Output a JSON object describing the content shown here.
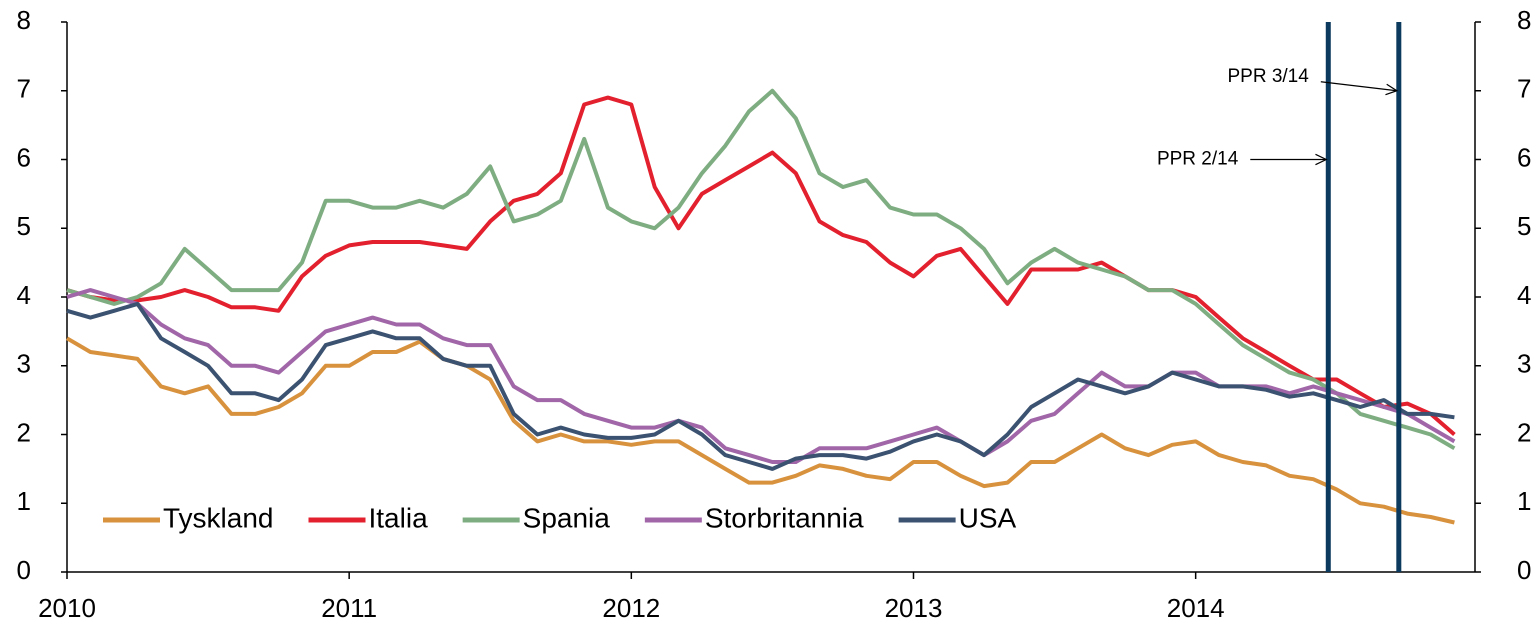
{
  "chart_data": {
    "type": "line",
    "x": [
      2010,
      2010.083,
      2010.167,
      2010.25,
      2010.333,
      2010.417,
      2010.5,
      2010.583,
      2010.667,
      2010.75,
      2010.833,
      2010.917,
      2011,
      2011.083,
      2011.167,
      2011.25,
      2011.333,
      2011.417,
      2011.5,
      2011.583,
      2011.667,
      2011.75,
      2011.833,
      2011.917,
      2012,
      2012.083,
      2012.167,
      2012.25,
      2012.333,
      2012.417,
      2012.5,
      2012.583,
      2012.667,
      2012.75,
      2012.833,
      2012.917,
      2013,
      2013.083,
      2013.167,
      2013.25,
      2013.333,
      2013.417,
      2013.5,
      2013.583,
      2013.667,
      2013.75,
      2013.833,
      2013.917,
      2014,
      2014.083,
      2014.167,
      2014.25,
      2014.333,
      2014.417,
      2014.5,
      2014.583,
      2014.667,
      2014.75,
      2014.833,
      2014.917
    ],
    "series": [
      {
        "name": "Tyskland",
        "color": "#d8923e",
        "values": [
          3.4,
          3.2,
          3.15,
          3.1,
          2.7,
          2.6,
          2.7,
          2.3,
          2.3,
          2.4,
          2.6,
          3.0,
          3.0,
          3.2,
          3.2,
          3.35,
          3.1,
          3.0,
          2.8,
          2.2,
          1.9,
          2.0,
          1.9,
          1.9,
          1.85,
          1.9,
          1.9,
          1.7,
          1.5,
          1.3,
          1.3,
          1.4,
          1.55,
          1.5,
          1.4,
          1.35,
          1.6,
          1.6,
          1.4,
          1.25,
          1.3,
          1.6,
          1.6,
          1.8,
          2.0,
          1.8,
          1.7,
          1.85,
          1.9,
          1.7,
          1.6,
          1.55,
          1.4,
          1.35,
          1.2,
          1.0,
          0.95,
          0.85,
          0.8,
          0.72
        ]
      },
      {
        "name": "Italia",
        "color": "#e3202e",
        "values": [
          4.1,
          4.0,
          3.95,
          3.95,
          4.0,
          4.1,
          4.0,
          3.85,
          3.85,
          3.8,
          4.3,
          4.6,
          4.75,
          4.8,
          4.8,
          4.8,
          4.75,
          4.7,
          5.1,
          5.4,
          5.5,
          5.8,
          6.8,
          6.9,
          6.8,
          5.6,
          5.0,
          5.5,
          5.7,
          5.9,
          6.1,
          5.8,
          5.1,
          4.9,
          4.8,
          4.5,
          4.3,
          4.6,
          4.7,
          4.3,
          3.9,
          4.4,
          4.4,
          4.4,
          4.5,
          4.3,
          4.1,
          4.1,
          4.0,
          3.7,
          3.4,
          3.2,
          3.0,
          2.8,
          2.8,
          2.6,
          2.4,
          2.45,
          2.3,
          2.0
        ]
      },
      {
        "name": "Spania",
        "color": "#7fad82",
        "values": [
          4.1,
          4.0,
          3.9,
          4.0,
          4.2,
          4.7,
          4.4,
          4.1,
          4.1,
          4.1,
          4.5,
          5.4,
          5.4,
          5.3,
          5.3,
          5.4,
          5.3,
          5.5,
          5.9,
          5.1,
          5.2,
          5.4,
          6.3,
          5.3,
          5.1,
          5.0,
          5.3,
          5.8,
          6.2,
          6.7,
          7.0,
          6.6,
          5.8,
          5.6,
          5.7,
          5.3,
          5.2,
          5.2,
          5.0,
          4.7,
          4.2,
          4.5,
          4.7,
          4.5,
          4.4,
          4.3,
          4.1,
          4.1,
          3.9,
          3.6,
          3.3,
          3.1,
          2.9,
          2.8,
          2.6,
          2.3,
          2.2,
          2.1,
          2.0,
          1.8
        ]
      },
      {
        "name": "Storbritannia",
        "color": "#a066a8",
        "values": [
          4.0,
          4.1,
          4.0,
          3.9,
          3.6,
          3.4,
          3.3,
          3.0,
          3.0,
          2.9,
          3.2,
          3.5,
          3.6,
          3.7,
          3.6,
          3.6,
          3.4,
          3.3,
          3.3,
          2.7,
          2.5,
          2.5,
          2.3,
          2.2,
          2.1,
          2.1,
          2.2,
          2.1,
          1.8,
          1.7,
          1.6,
          1.6,
          1.8,
          1.8,
          1.8,
          1.9,
          2.0,
          2.1,
          1.9,
          1.7,
          1.9,
          2.2,
          2.3,
          2.6,
          2.9,
          2.7,
          2.7,
          2.9,
          2.9,
          2.7,
          2.7,
          2.7,
          2.6,
          2.7,
          2.6,
          2.5,
          2.4,
          2.3,
          2.1,
          1.9
        ]
      },
      {
        "name": "USA",
        "color": "#3b5271",
        "values": [
          3.8,
          3.7,
          3.8,
          3.9,
          3.4,
          3.2,
          3.0,
          2.6,
          2.6,
          2.5,
          2.8,
          3.3,
          3.4,
          3.5,
          3.4,
          3.4,
          3.1,
          3.0,
          3.0,
          2.3,
          2.0,
          2.1,
          2.0,
          1.95,
          1.95,
          2.0,
          2.2,
          2.0,
          1.7,
          1.6,
          1.5,
          1.65,
          1.7,
          1.7,
          1.65,
          1.75,
          1.9,
          2.0,
          1.9,
          1.7,
          2.0,
          2.4,
          2.6,
          2.8,
          2.7,
          2.6,
          2.7,
          2.9,
          2.8,
          2.7,
          2.7,
          2.65,
          2.55,
          2.6,
          2.5,
          2.4,
          2.5,
          2.3,
          2.3,
          2.25
        ]
      }
    ],
    "xlim": [
      2010,
      2014.99
    ],
    "xticks": [
      2010,
      2011,
      2012,
      2013,
      2014
    ],
    "ylim": [
      0,
      8
    ],
    "yticks": [
      0,
      1,
      2,
      3,
      4,
      5,
      6,
      7,
      8
    ],
    "y2lim": [
      0,
      8
    ],
    "y2ticks": [
      0,
      1,
      2,
      3,
      4,
      5,
      6,
      7,
      8
    ],
    "legend": "lower left",
    "grid": false,
    "annotations": [
      {
        "label": "PPR 2/14",
        "x": 2014.47,
        "y": 6
      },
      {
        "label": "PPR 3/14",
        "x": 2014.72,
        "y": 7
      }
    ],
    "annotation_color": "#0b3a5e"
  }
}
